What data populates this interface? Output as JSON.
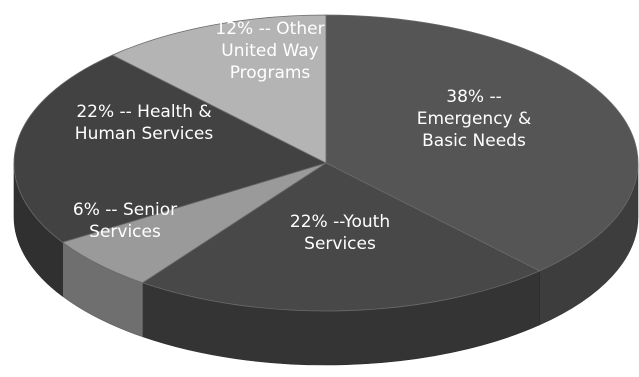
{
  "chart_data": {
    "type": "pie",
    "style": "3d-grayscale",
    "slices": [
      {
        "name": "Emergency & Basic Needs",
        "value": 38,
        "label_lines": [
          "38% --",
          "Emergency &",
          "Basic Needs"
        ],
        "color": "#555555"
      },
      {
        "name": "Youth Services",
        "value": 22,
        "label_lines": [
          "22% --Youth",
          "Services"
        ],
        "color": "#484848"
      },
      {
        "name": "Senior Services",
        "value": 6,
        "label_lines": [
          "6% -- Senior",
          "Services"
        ],
        "color": "#9a9a9a"
      },
      {
        "name": "Health & Human Services",
        "value": 22,
        "label_lines": [
          "22% -- Health &",
          "Human Services"
        ],
        "color": "#424242"
      },
      {
        "name": "Other United Way Programs",
        "value": 12,
        "label_lines": [
          "12% -- Other",
          "United Way",
          "Programs"
        ],
        "color": "#b4b4b4"
      }
    ]
  }
}
